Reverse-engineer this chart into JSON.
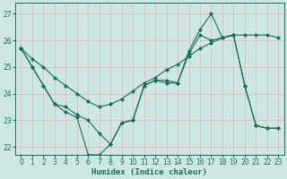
{
  "xlabel": "Humidex (Indice chaleur)",
  "xlim": [
    -0.5,
    23.5
  ],
  "ylim": [
    21.7,
    27.4
  ],
  "yticks": [
    22,
    23,
    24,
    25,
    26,
    27
  ],
  "xticks": [
    0,
    1,
    2,
    3,
    4,
    5,
    6,
    7,
    8,
    9,
    10,
    11,
    12,
    13,
    14,
    15,
    16,
    17,
    18,
    19,
    20,
    21,
    22,
    23
  ],
  "background_color": "#cde8e4",
  "grid_color": "#e8b8b8",
  "line_color": "#1a6b5a",
  "series": [
    {
      "x": [
        0,
        1,
        2,
        3,
        4,
        5,
        6,
        7,
        8,
        9,
        10,
        11,
        12,
        13,
        14,
        15,
        16,
        17,
        18,
        19,
        20,
        21,
        22,
        23
      ],
      "y": [
        25.7,
        25.3,
        25.0,
        24.6,
        24.3,
        24.0,
        23.7,
        23.5,
        23.6,
        23.8,
        24.1,
        24.4,
        24.6,
        24.9,
        25.1,
        25.4,
        25.7,
        25.9,
        26.1,
        26.2,
        26.2,
        26.2,
        26.2,
        26.1
      ]
    },
    {
      "x": [
        0,
        1,
        2,
        3,
        4,
        5,
        6,
        7,
        8,
        9,
        10,
        11,
        12,
        13,
        14,
        15,
        16,
        17,
        18,
        19,
        20,
        21,
        22,
        23
      ],
      "y": [
        25.7,
        25.0,
        24.3,
        23.6,
        23.3,
        23.1,
        21.7,
        21.7,
        22.1,
        22.9,
        23.0,
        24.3,
        24.5,
        24.4,
        24.4,
        25.5,
        26.2,
        26.0,
        26.1,
        26.2,
        24.3,
        22.8,
        22.7,
        22.7
      ]
    },
    {
      "x": [
        0,
        1,
        2,
        3,
        4,
        5,
        6,
        7,
        8,
        9,
        10,
        11,
        12,
        13,
        14,
        15,
        16,
        17,
        18,
        19,
        20,
        21,
        22,
        23
      ],
      "y": [
        25.7,
        25.0,
        24.3,
        23.6,
        23.5,
        23.2,
        23.0,
        22.5,
        22.1,
        22.9,
        23.0,
        24.3,
        24.5,
        24.5,
        24.4,
        25.6,
        26.4,
        27.0,
        26.1,
        26.2,
        24.3,
        22.8,
        22.7,
        22.7
      ]
    }
  ]
}
